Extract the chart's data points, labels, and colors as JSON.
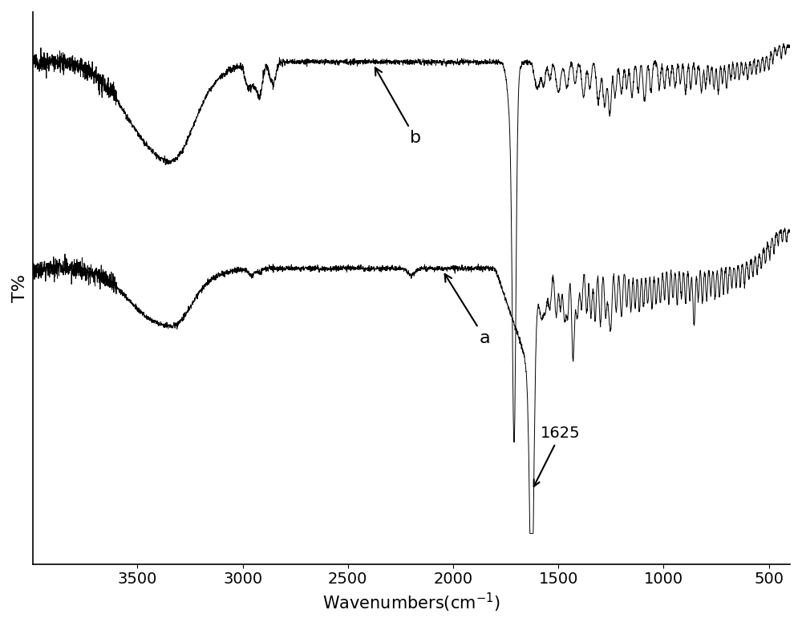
{
  "xlabel": "Wavenumbers(cm$^{-1}$)",
  "ylabel": "T%",
  "background_color": "#ffffff",
  "line_color": "#000000",
  "xticks": [
    500,
    1000,
    1500,
    2000,
    2500,
    3000,
    3500
  ],
  "font_size": 14,
  "xmin": 399,
  "xmax": 3999
}
